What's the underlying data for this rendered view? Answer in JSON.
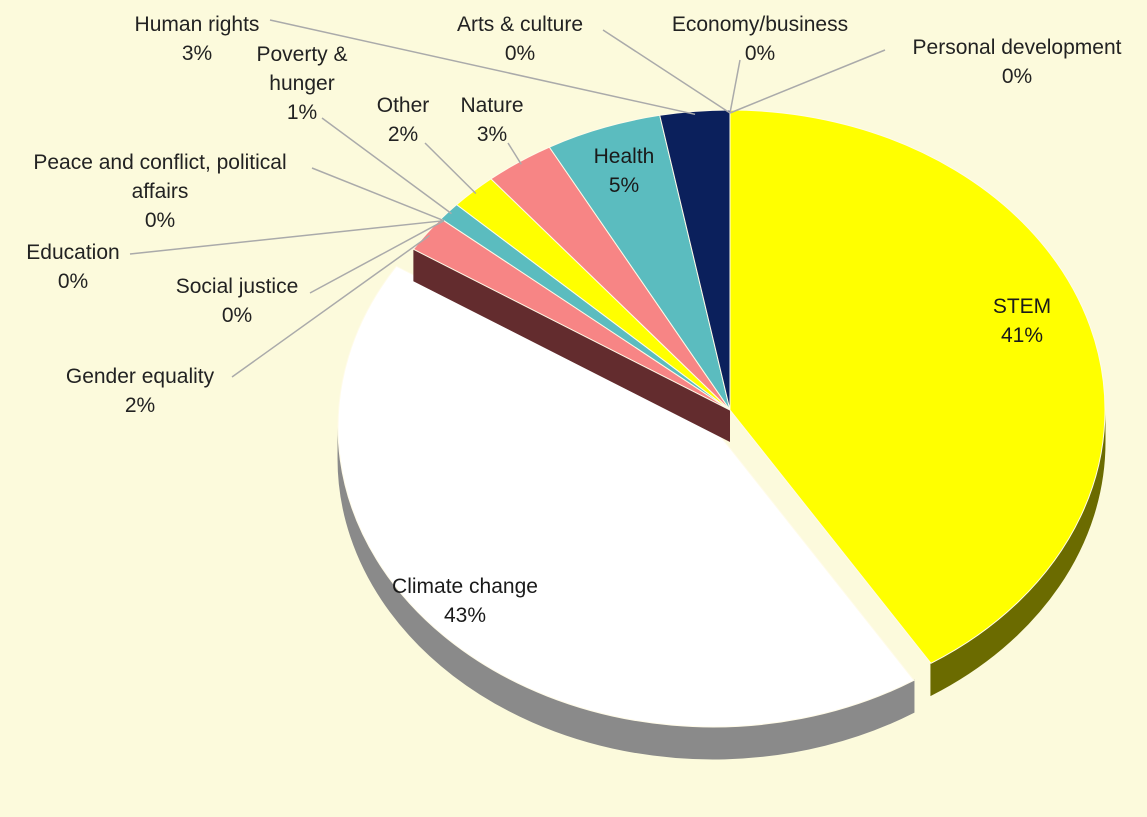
{
  "chart_data": {
    "type": "pie",
    "categories": [
      "STEM",
      "Climate change",
      "Gender equality",
      "Social justice",
      "Education",
      "Peace and conflict, political affairs",
      "Poverty & hunger",
      "Other",
      "Nature",
      "Health",
      "Human rights",
      "Arts & culture",
      "Economy/business",
      "Personal development"
    ],
    "values": [
      41,
      43,
      2,
      0,
      0,
      0,
      1,
      2,
      3,
      5,
      3,
      0,
      0,
      0
    ],
    "value_labels": [
      "41%",
      "43%",
      "2%",
      "0%",
      "0%",
      "0%",
      "1%",
      "2%",
      "3%",
      "5%",
      "3%",
      "0%",
      "0%",
      "0%"
    ],
    "colors": [
      "#ffff00",
      "#ffffff",
      "#f78585",
      "#f78585",
      "#5bbcbf",
      "#5bbcbf",
      "#5bbcbf",
      "#ffff00",
      "#f78585",
      "#5bbcbf",
      "#0b205c",
      "#ffff00",
      "#ffff00",
      "#ffff00"
    ]
  }
}
